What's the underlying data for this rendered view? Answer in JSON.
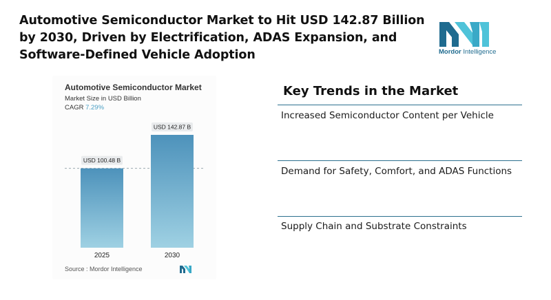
{
  "headline": "Automotive Semiconductor Market to Hit USD 142.87 Billion by 2030, Driven by Electrification, ADAS Expansion, and Software-Defined Vehicle Adoption",
  "logo": {
    "brand_primary": "Mordor",
    "brand_secondary": "Intelligence",
    "colors": {
      "dark": "#1f6b8f",
      "light": "#4fc3d9"
    }
  },
  "chart_data": {
    "type": "bar",
    "title": "Automotive Semiconductor Market",
    "subtitle": "Market Size in USD Billion",
    "cagr_label": "CAGR",
    "cagr_value": "7.29%",
    "categories": [
      "2025",
      "2030"
    ],
    "values": [
      100.48,
      142.87
    ],
    "data_labels": [
      "USD 100.48 B",
      "USD 142.87 B"
    ],
    "ylim": [
      0,
      142.87
    ],
    "grid": false,
    "reference_line": "dashed line at 2025 value",
    "bar_color_top": "#4d92bb",
    "bar_color_bottom": "#9fd1e3",
    "source": "Source :  Mordor Intelligence"
  },
  "trends": {
    "title": "Key Trends in the Market",
    "items": [
      "Increased Semiconductor Content per Vehicle",
      "Demand for Safety, Comfort, and ADAS Functions",
      "Supply Chain and Substrate Constraints"
    ],
    "line_color": "#2b6f8e"
  }
}
